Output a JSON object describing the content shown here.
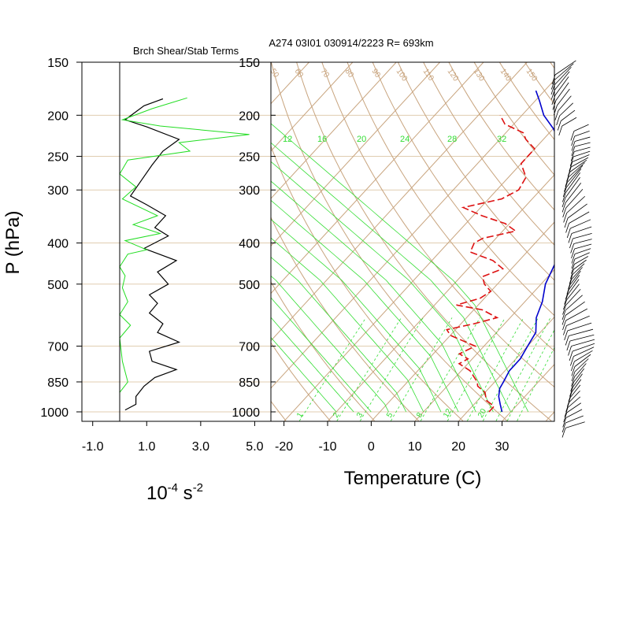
{
  "figure": {
    "left_title": "Brch Shear/Stab Terms",
    "right_title": "A274 03I01 030914/2223 R= 693km",
    "left_ylabel": "P (hPa)",
    "left_xlabel_main": "10",
    "left_xlabel_sup": "-4",
    "left_xlabel_unit": " s",
    "left_xlabel_sup2": "-2",
    "right_xlabel": "Temperature (C)"
  },
  "colors": {
    "isopleth": "#c8a47e",
    "mixing_ratio": "#33dd33",
    "temperature": "#dd1111",
    "dewpoint": "#0000cc",
    "shear": "#000000",
    "stability": "#22dd22",
    "pressure_gridline": "#e0cdb0"
  },
  "chart_data": [
    {
      "type": "line",
      "title": "Brch Shear/Stab Terms",
      "ylabel": "P (hPa)",
      "xlabel": "10^-4 s^-2",
      "y_scale": "log-pressure",
      "ylim": [
        1050,
        150
      ],
      "xlim": [
        -1.0,
        5.0
      ],
      "x_ticks": [
        "-1.0",
        "1.0",
        "3.0",
        "5.0"
      ],
      "y_ticks": [
        "150",
        "200",
        "250",
        "300",
        "400",
        "500",
        "700",
        "850",
        "1000"
      ],
      "y_tick_values": [
        150,
        200,
        250,
        300,
        400,
        500,
        700,
        850,
        1000
      ],
      "series": [
        {
          "color": "#000000",
          "points": [
            [
              1.6,
              183
            ],
            [
              0.9,
              190
            ],
            [
              0.2,
              205
            ],
            [
              1.0,
              213
            ],
            [
              2.2,
              228
            ],
            [
              1.6,
              243
            ],
            [
              1.2,
              262
            ],
            [
              0.8,
              285
            ],
            [
              0.4,
              310
            ],
            [
              1.0,
              325
            ],
            [
              1.7,
              345
            ],
            [
              1.3,
              368
            ],
            [
              1.8,
              385
            ],
            [
              0.9,
              412
            ],
            [
              2.1,
              440
            ],
            [
              1.4,
              468
            ],
            [
              1.8,
              500
            ],
            [
              1.1,
              530
            ],
            [
              1.4,
              555
            ],
            [
              1.1,
              585
            ],
            [
              1.6,
              620
            ],
            [
              1.4,
              650
            ],
            [
              2.2,
              685
            ],
            [
              1.1,
              720
            ],
            [
              1.2,
              760
            ],
            [
              2.1,
              795
            ],
            [
              1.3,
              830
            ],
            [
              0.9,
              870
            ],
            [
              0.6,
              920
            ],
            [
              0.6,
              960
            ],
            [
              0.2,
              990
            ]
          ]
        },
        {
          "color": "#22dd22",
          "points": [
            [
              2.5,
              182
            ],
            [
              1.2,
              193
            ],
            [
              0.1,
              205
            ],
            [
              1.5,
              212
            ],
            [
              4.8,
              222
            ],
            [
              2.2,
              232
            ],
            [
              2.6,
              243
            ],
            [
              0.3,
              255
            ],
            [
              0.0,
              275
            ],
            [
              0.6,
              295
            ],
            [
              0.1,
              315
            ],
            [
              1.4,
              345
            ],
            [
              0.5,
              362
            ],
            [
              1.5,
              380
            ],
            [
              0.2,
              395
            ],
            [
              1.0,
              415
            ],
            [
              0.3,
              425
            ],
            [
              0.0,
              455
            ],
            [
              0.2,
              478
            ],
            [
              0.1,
              510
            ],
            [
              0.3,
              550
            ],
            [
              0.0,
              590
            ],
            [
              0.4,
              625
            ],
            [
              0.0,
              670
            ],
            [
              0.1,
              760
            ],
            [
              0.3,
              850
            ],
            [
              0.0,
              900
            ],
            [
              0.0,
              960
            ]
          ]
        }
      ]
    },
    {
      "type": "line",
      "subtype": "skew-T",
      "title": "A274 03I01 030914/2223 R= 693km",
      "xlabel": "Temperature (C)",
      "ylabel": "",
      "y_scale": "log-pressure",
      "ylim": [
        1050,
        150
      ],
      "xlim": [
        -23,
        42
      ],
      "x_ticks": [
        "-20",
        "-10",
        "0",
        "10",
        "20",
        "30"
      ],
      "y_ticks": [
        "150",
        "200",
        "250",
        "300",
        "400",
        "500",
        "700",
        "850",
        "1000"
      ],
      "mixing_ratio_labels_top": [
        "12",
        "16",
        "20",
        "24",
        "28",
        "32"
      ],
      "mixing_ratio_labels_bottom": [
        "1",
        "2",
        "3",
        "5",
        "8",
        "12",
        "20"
      ],
      "theta_labels_top": [
        "50",
        "60",
        "70",
        "80",
        "90",
        "100",
        "110",
        "120",
        "130",
        "140",
        "150"
      ],
      "series": [
        {
          "style": "solid",
          "color": "#0000cc",
          "points_pT": [
            [
              1000,
              28
            ],
            [
              960,
              26
            ],
            [
              920,
              24
            ],
            [
              880,
              22.5
            ],
            [
              850,
              22
            ],
            [
              800,
              21
            ],
            [
              750,
              21
            ],
            [
              700,
              20
            ],
            [
              650,
              19
            ],
            [
              600,
              16
            ],
            [
              550,
              14
            ],
            [
              500,
              11
            ],
            [
              450,
              9
            ],
            [
              400,
              6
            ],
            [
              350,
              2
            ],
            [
              300,
              -3
            ],
            [
              270,
              -7
            ],
            [
              250,
              -12
            ],
            [
              230,
              -16
            ],
            [
              215,
              -20
            ],
            [
              200,
              -25
            ],
            [
              185,
              -29
            ],
            [
              175,
              -32
            ]
          ]
        },
        {
          "style": "dashed",
          "color": "#dd1111",
          "points_pT": [
            [
              1000,
              25
            ],
            [
              970,
              25
            ],
            [
              940,
              22
            ],
            [
              900,
              20
            ],
            [
              870,
              17
            ],
            [
              850,
              16
            ],
            [
              800,
              12
            ],
            [
              770,
              8
            ],
            [
              750,
              9
            ],
            [
              730,
              6
            ],
            [
              700,
              8
            ],
            [
              680,
              4
            ],
            [
              660,
              0
            ],
            [
              640,
              -2
            ],
            [
              620,
              3
            ],
            [
              600,
              7
            ],
            [
              575,
              2
            ],
            [
              560,
              -5
            ],
            [
              540,
              -1
            ],
            [
              520,
              0
            ],
            [
              500,
              -3
            ],
            [
              480,
              -5
            ],
            [
              460,
              -2
            ],
            [
              440,
              -6
            ],
            [
              420,
              -13
            ],
            [
              400,
              -14
            ],
            [
              390,
              -13
            ],
            [
              375,
              -7
            ],
            [
              360,
              -11
            ],
            [
              345,
              -18
            ],
            [
              330,
              -24
            ],
            [
              315,
              -17
            ],
            [
              300,
              -15
            ],
            [
              280,
              -16
            ],
            [
              260,
              -20
            ],
            [
              240,
              -20
            ],
            [
              228,
              -24
            ],
            [
              220,
              -26
            ],
            [
              210,
              -32
            ],
            [
              200,
              -35
            ]
          ]
        }
      ]
    }
  ]
}
